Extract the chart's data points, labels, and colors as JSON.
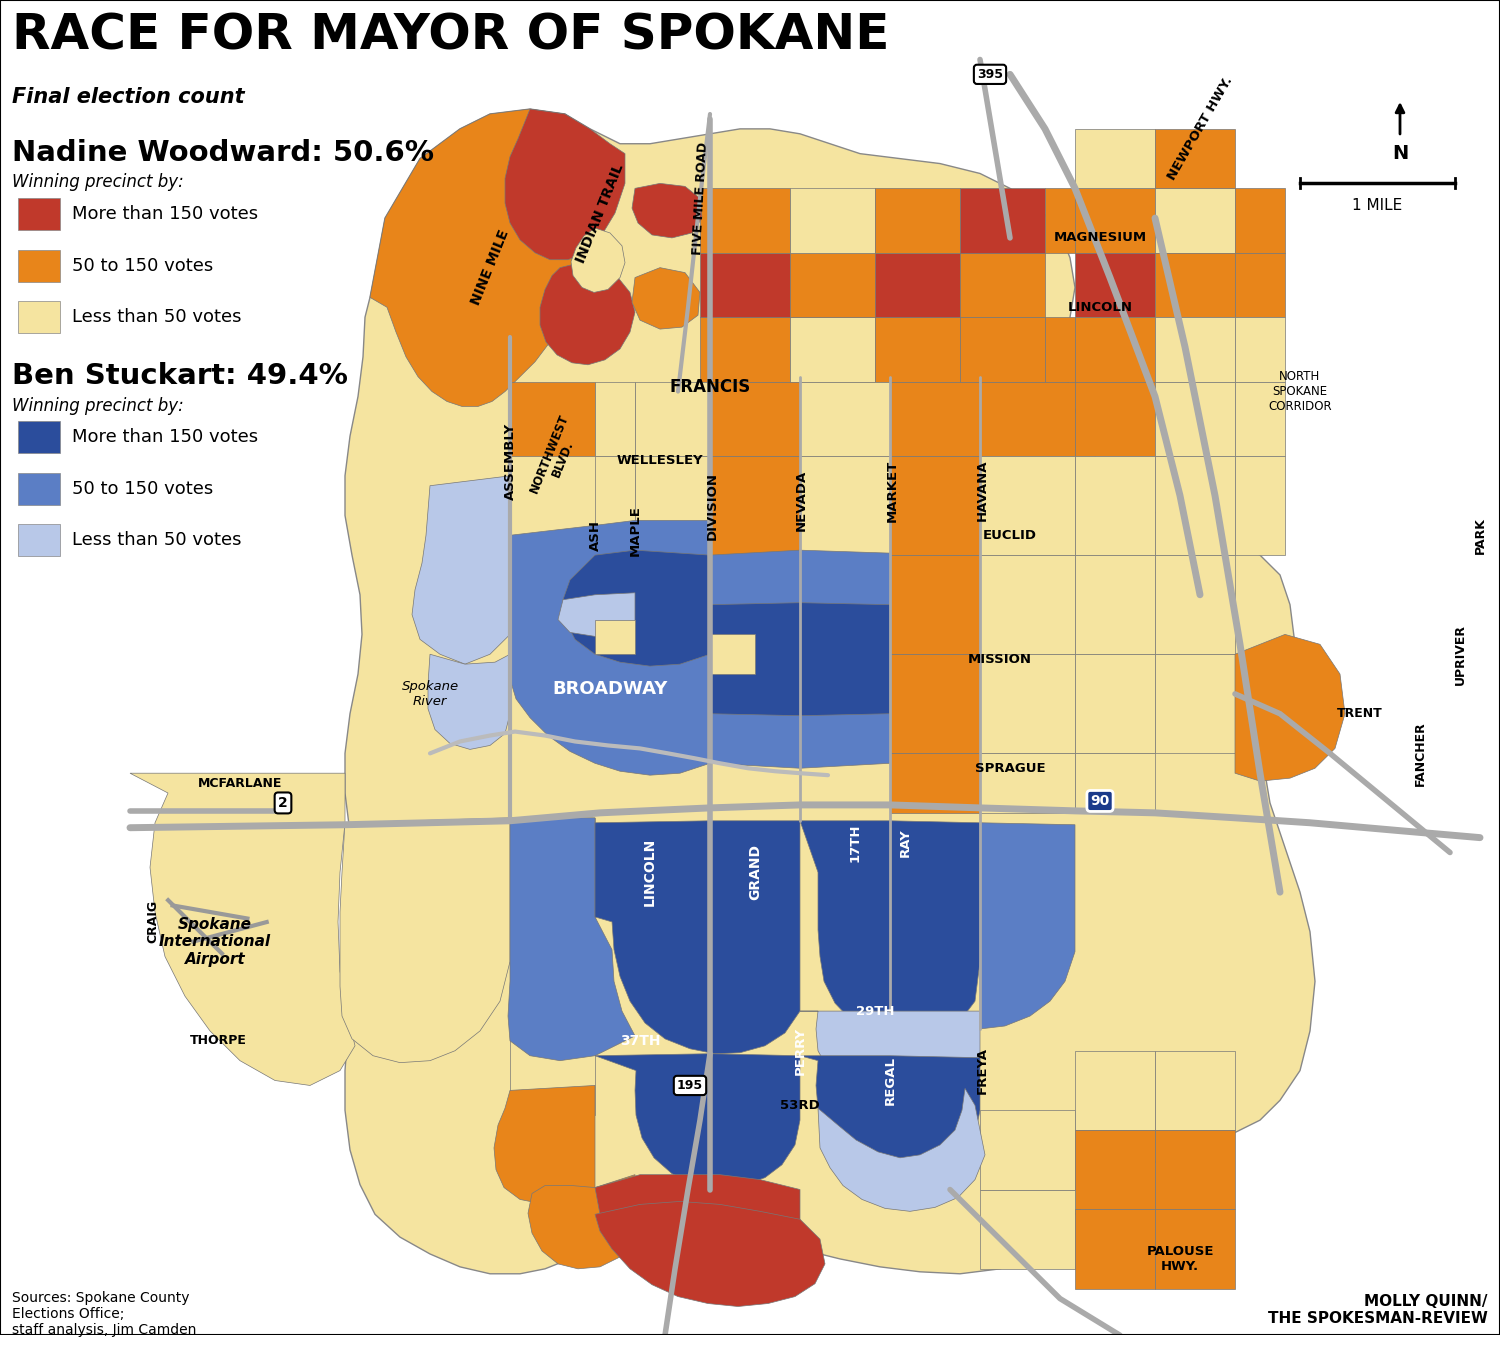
{
  "title": "RACE FOR MAYOR OF SPOKANE",
  "subtitle": "Final election count",
  "candidate1_name": "Nadine Woodward: 50.6%",
  "candidate1_sub": "Winning precinct by:",
  "candidate2_name": "Ben Stuckart: 49.4%",
  "candidate2_sub": "Winning precinct by:",
  "woodward_colors": {
    "high": "#C0392B",
    "mid": "#E8851A",
    "low": "#F5E4A0"
  },
  "stuckart_colors": {
    "high": "#2B4D9C",
    "mid": "#5B7EC5",
    "low": "#B8C8E8"
  },
  "legend_labels": {
    "high": "More than 150 votes",
    "mid": "50 to 150 votes",
    "low": "Less than 50 votes"
  },
  "source_text": "Sources: Spokane County\nElections Office;\nstaff analysis, Jim Camden",
  "credit_text": "MOLLY QUINN/\nTHE SPOKESMAN-REVIEW",
  "scale_text": "1 MILE",
  "background_color": "#FFFFFF",
  "road_color": "#AAAAAA",
  "border_color": "#888888"
}
